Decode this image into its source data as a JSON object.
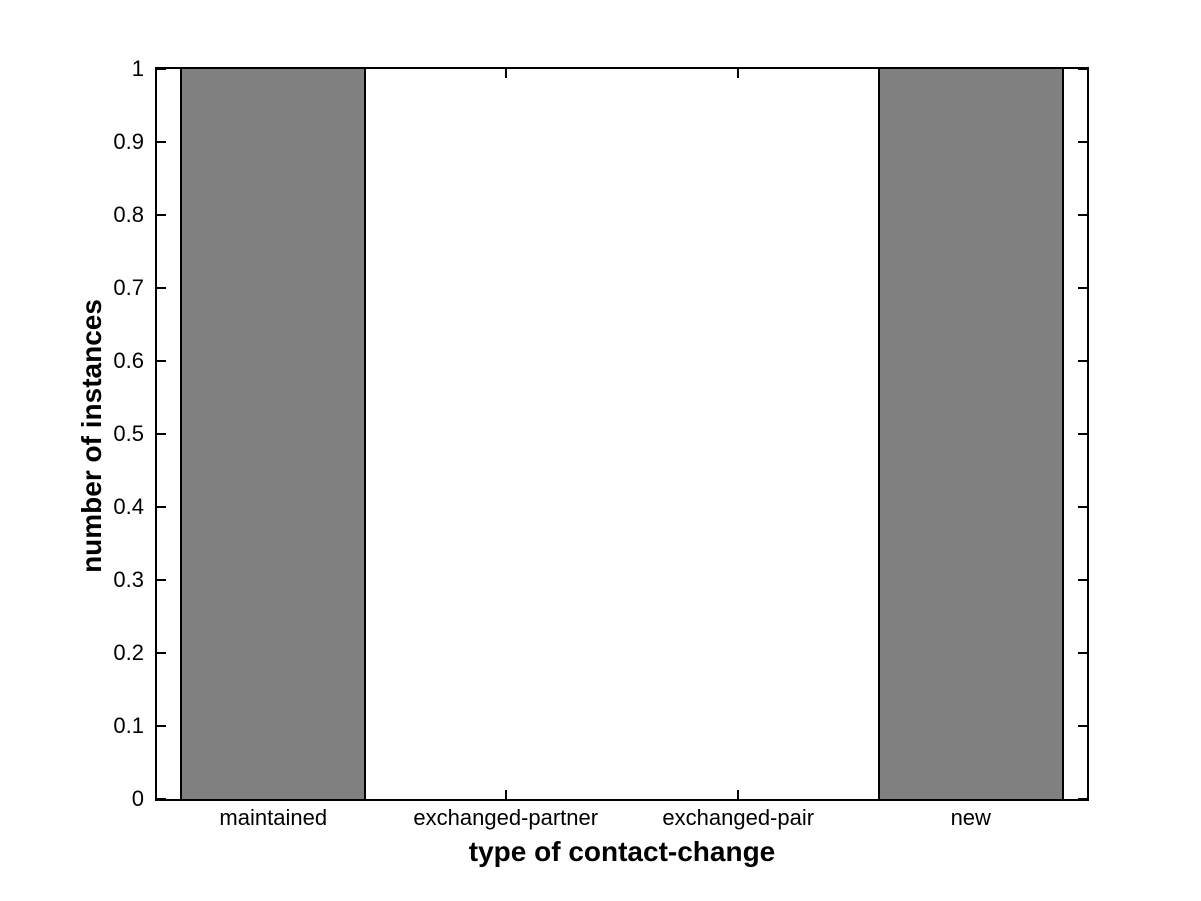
{
  "figure": {
    "background": "#ffffff",
    "text_color": "#000000"
  },
  "chart_data": {
    "type": "bar",
    "title": "",
    "categories": [
      "maintained",
      "exchanged-partner",
      "exchanged-pair",
      "new"
    ],
    "values": [
      1,
      0,
      0,
      1
    ],
    "xlabel": "type of contact-change",
    "ylabel": "number of instances",
    "ylim": [
      0,
      1
    ],
    "yticks": [
      0,
      0.1,
      0.2,
      0.3,
      0.4,
      0.5,
      0.6,
      0.7,
      0.8,
      0.9,
      1
    ],
    "ytick_labels": [
      "0",
      "0.1",
      "0.2",
      "0.3",
      "0.4",
      "0.5",
      "0.6",
      "0.7",
      "0.8",
      "0.9",
      "1"
    ],
    "bar_width_fraction": 0.8,
    "bar_color": "#808080",
    "bar_edge_color": "#000000",
    "axis_color": "#000000",
    "grid": false,
    "legend": null,
    "box": true,
    "tick_direction": "in"
  }
}
